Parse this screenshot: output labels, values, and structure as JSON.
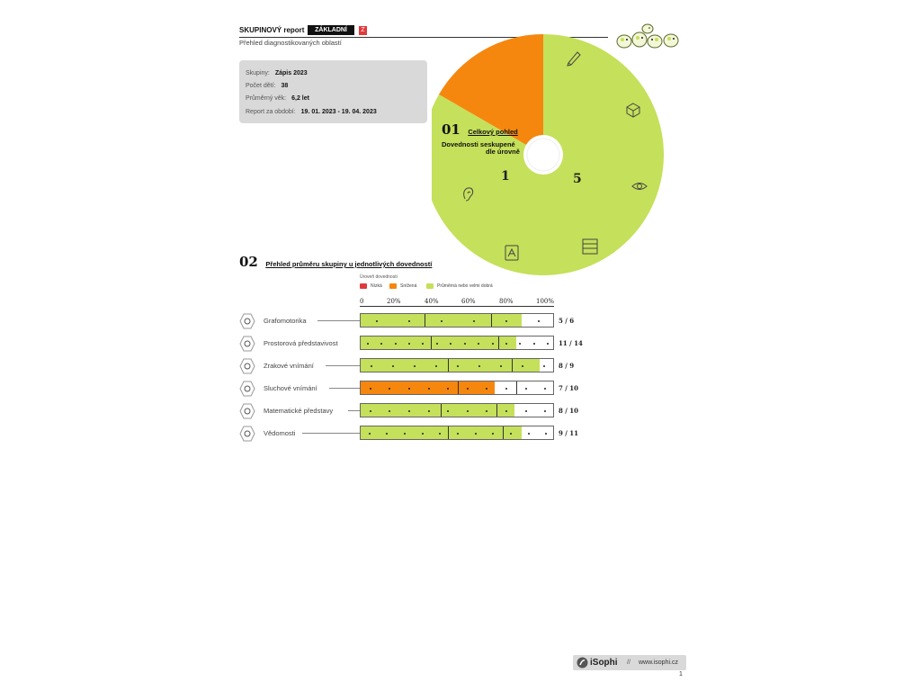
{
  "header": {
    "title": "SKUPINOVÝ report",
    "badge": "ZÁKLADNÍ",
    "badge_letter": "Z",
    "subtitle": "Přehled diagnostikovaných oblastí"
  },
  "info": {
    "rows": [
      {
        "label": "Skupiny:",
        "value": "Zápis 2023"
      },
      {
        "label": "Počet dětí:",
        "value": "38"
      },
      {
        "label": "Průměrný věk:",
        "value": "6,2 let"
      },
      {
        "label": "Report za období:",
        "value": "19. 01. 2023 - 19. 04. 2023"
      }
    ]
  },
  "section1": {
    "number": "01",
    "title": "Celkový pohled",
    "subtitle_line1": "Dovednosti seskupené",
    "subtitle_line2": "dle úrovně"
  },
  "chart_data": [
    {
      "type": "pie",
      "categories": [
        "Snížená",
        "Průměrná nebo velmi dobrá"
      ],
      "values": [
        1,
        5
      ],
      "colors": [
        "#f5870f",
        "#c5e05a"
      ],
      "data_labels": [
        "1",
        "5"
      ],
      "slice_icons": {
        "Snížená": [
          "ear-icon"
        ],
        "Průměrná nebo velmi dobrá": [
          "pencil-icon",
          "cube-icon",
          "eye-icon",
          "abacus-icon",
          "book-icon"
        ]
      }
    },
    {
      "type": "bar",
      "orientation": "horizontal",
      "legend_title": "Úroveň dovednosti",
      "legend": [
        {
          "name": "Nízká",
          "color": "#e03a3a"
        },
        {
          "name": "Snížená",
          "color": "#f5870f"
        },
        {
          "name": "Průměrná nebo velmi dobrá",
          "color": "#c5e05a"
        }
      ],
      "xlim": [
        0,
        100
      ],
      "ticks": [
        "0",
        "20%",
        "40%",
        "60%",
        "80%",
        "100%"
      ],
      "categories": [
        "Grafomotorika",
        "Prostorová představivost",
        "Zrakové vnímání",
        "Sluchové vnímání",
        "Matematické představy",
        "Vědomosti"
      ],
      "values": [
        83,
        80,
        92,
        69,
        79,
        83
      ],
      "colors": [
        "#c5e05a",
        "#c5e05a",
        "#c5e05a",
        "#f5870f",
        "#c5e05a",
        "#c5e05a"
      ],
      "level_boundaries": [
        [
          33,
          67
        ],
        [
          36,
          71
        ],
        [
          45,
          78
        ],
        [
          50,
          80
        ],
        [
          41,
          70
        ],
        [
          45,
          73
        ]
      ],
      "scores": [
        "5 / 6",
        "11 / 14",
        "8 / 9",
        "7 / 10",
        "8 / 10",
        "9 / 11"
      ],
      "icons": [
        "pencil-icon",
        "cube-icon",
        "eye-icon",
        "ear-icon",
        "abacus-icon",
        "book-icon"
      ]
    }
  ],
  "section2": {
    "number": "02",
    "title": "Přehled průměru skupiny u jednotlivých dovedností"
  },
  "footer": {
    "logo": "iSophi",
    "separator": "//",
    "url": "www.isophi.cz",
    "page": "1"
  },
  "colors": {
    "green": "#c5e05a",
    "orange": "#f5870f",
    "red": "#e03a3a"
  }
}
